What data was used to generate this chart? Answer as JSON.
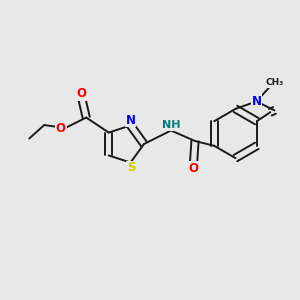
{
  "background_color": "#e8e8e8",
  "bond_color": "#1a1a1a",
  "bond_width": 1.4,
  "dbo": 0.12,
  "atom_colors": {
    "O": "#ff0000",
    "N": "#0000ff",
    "S": "#cccc00",
    "NH": "#008080",
    "C": "#1a1a1a"
  },
  "font_size": 8.5
}
